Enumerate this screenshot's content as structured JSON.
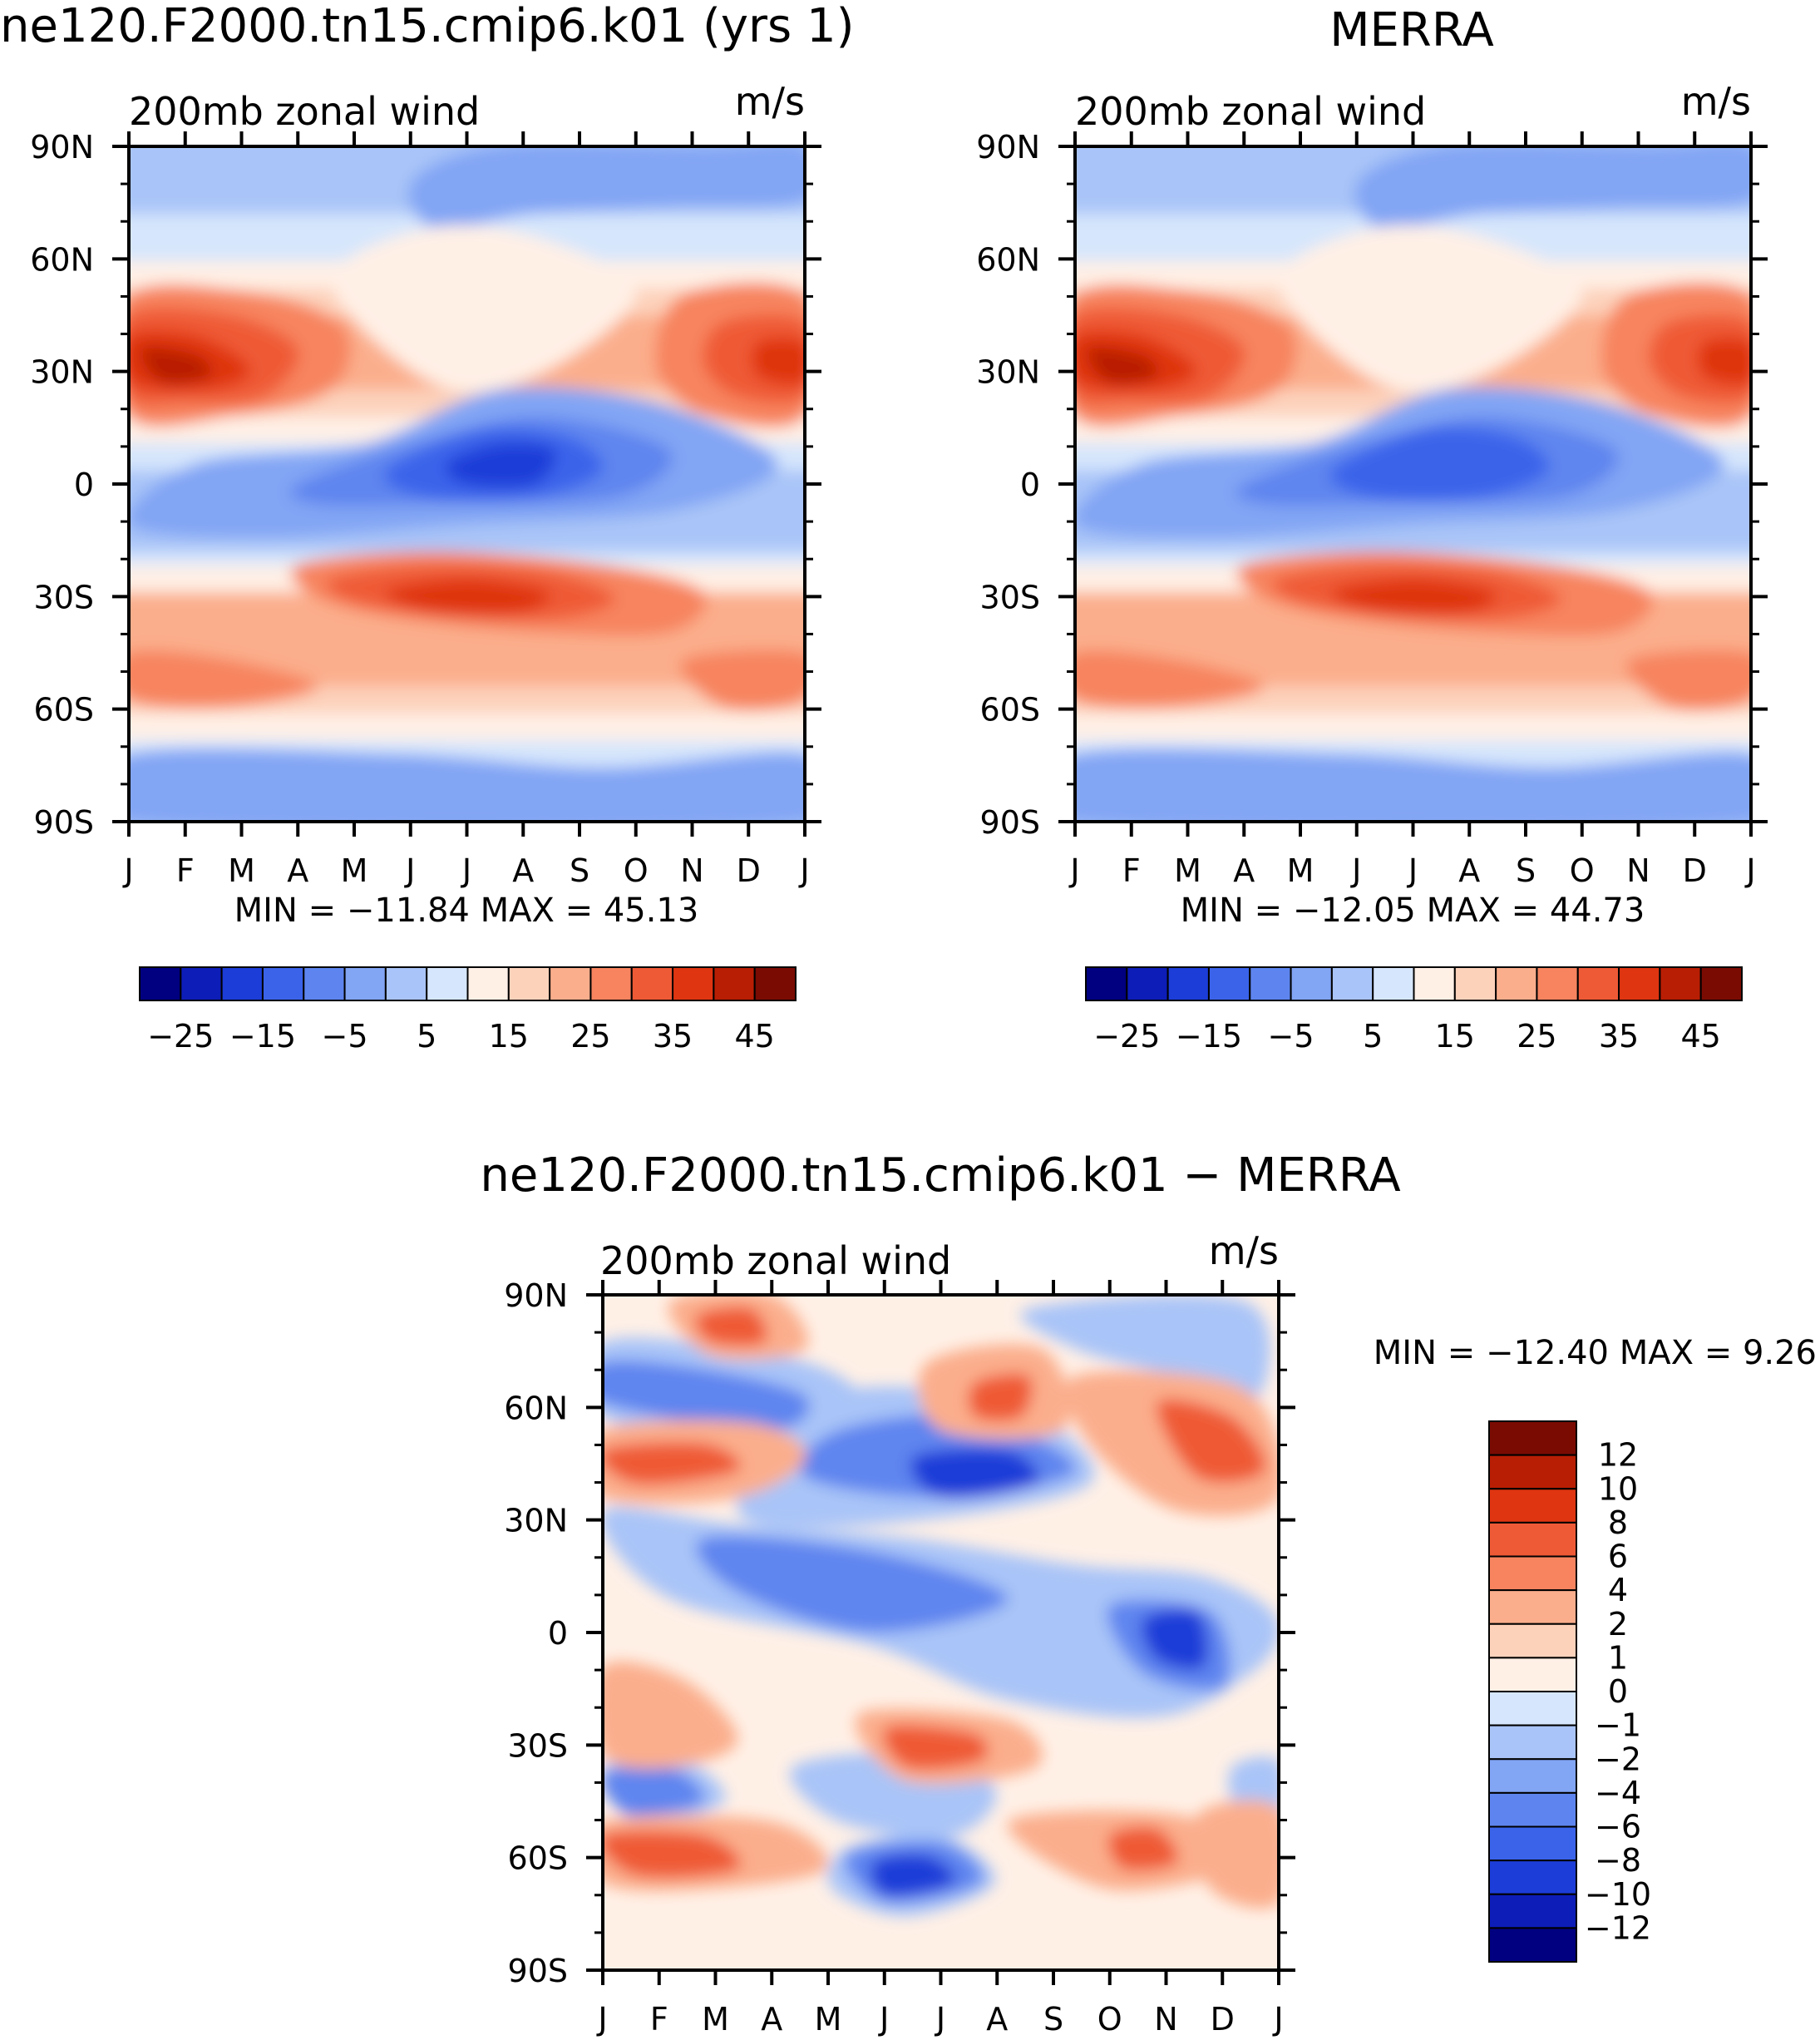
{
  "figure": {
    "colors": {
      "field_colorbar": [
        "#000080",
        "#0d1db8",
        "#1c3dd8",
        "#3b63ea",
        "#5e85ef",
        "#82a5f4",
        "#a9c4f8",
        "#d6e6fc",
        "#fff0e6",
        "#fdd2bb",
        "#fbae8c",
        "#f7845f",
        "#ef5a36",
        "#df3511",
        "#b81e04",
        "#7a0b03"
      ],
      "diff_colorbar": [
        "#000080",
        "#0d1db8",
        "#1c3dd8",
        "#3b63ea",
        "#5e85ef",
        "#82a5f4",
        "#a9c4f8",
        "#d6e6fc",
        "#fff0e6",
        "#fdd2bb",
        "#fbae8c",
        "#f7845f",
        "#ef5a36",
        "#df3511",
        "#b81e04",
        "#7a0b03"
      ]
    }
  },
  "chart_data": [
    {
      "type": "heatmap",
      "id": "model",
      "title": "ne120.F2000.tn15.cmip6.k01 (yrs 1)",
      "subtitle_left": "200mb zonal wind",
      "subtitle_right": "m/s",
      "x_ticklabels": [
        "J",
        "F",
        "M",
        "A",
        "M",
        "J",
        "J",
        "A",
        "S",
        "O",
        "N",
        "D",
        "J"
      ],
      "y_ticklabels": [
        "90N",
        "60N",
        "30N",
        "0",
        "30S",
        "60S",
        "90S"
      ],
      "stats_text": "MIN = −11.84 MAX = 45.13",
      "min": -11.84,
      "max": 45.13,
      "colorbar_ticklabels": [
        "−25",
        "−15",
        "−5",
        "5",
        "15",
        "25",
        "35",
        "45"
      ],
      "colorbar_levels": [
        -30,
        -25,
        -20,
        -15,
        -10,
        -5,
        0,
        5,
        10,
        15,
        20,
        25,
        30,
        35,
        40,
        45
      ],
      "colorbar_orientation": "horizontal"
    },
    {
      "type": "heatmap",
      "id": "obs",
      "title": "MERRA",
      "subtitle_left": "200mb zonal wind",
      "subtitle_right": "m/s",
      "x_ticklabels": [
        "J",
        "F",
        "M",
        "A",
        "M",
        "J",
        "J",
        "A",
        "S",
        "O",
        "N",
        "D",
        "J"
      ],
      "y_ticklabels": [
        "90N",
        "60N",
        "30N",
        "0",
        "30S",
        "60S",
        "90S"
      ],
      "stats_text": "MIN = −12.05 MAX = 44.73",
      "min": -12.05,
      "max": 44.73,
      "colorbar_ticklabels": [
        "−25",
        "−15",
        "−5",
        "5",
        "15",
        "25",
        "35",
        "45"
      ],
      "colorbar_levels": [
        -30,
        -25,
        -20,
        -15,
        -10,
        -5,
        0,
        5,
        10,
        15,
        20,
        25,
        30,
        35,
        40,
        45
      ],
      "colorbar_orientation": "horizontal"
    },
    {
      "type": "heatmap",
      "id": "diff",
      "title": "ne120.F2000.tn15.cmip6.k01 − MERRA",
      "subtitle_left": "200mb zonal wind",
      "subtitle_right": "m/s",
      "x_ticklabels": [
        "J",
        "F",
        "M",
        "A",
        "M",
        "J",
        "J",
        "A",
        "S",
        "O",
        "N",
        "D",
        "J"
      ],
      "y_ticklabels": [
        "90N",
        "60N",
        "30N",
        "0",
        "30S",
        "60S",
        "90S"
      ],
      "stats_text": "MIN = −12.40 MAX = 9.26",
      "min": -12.4,
      "max": 9.26,
      "colorbar_ticklabels": [
        "12",
        "10",
        "8",
        "6",
        "4",
        "2",
        "1",
        "0",
        "−1",
        "−2",
        "−4",
        "−6",
        "−8",
        "−10",
        "−12"
      ],
      "colorbar_levels": [
        -12,
        -10,
        -8,
        -6,
        -4,
        -2,
        -1,
        0,
        1,
        2,
        4,
        6,
        8,
        10,
        12
      ],
      "colorbar_orientation": "vertical"
    }
  ]
}
